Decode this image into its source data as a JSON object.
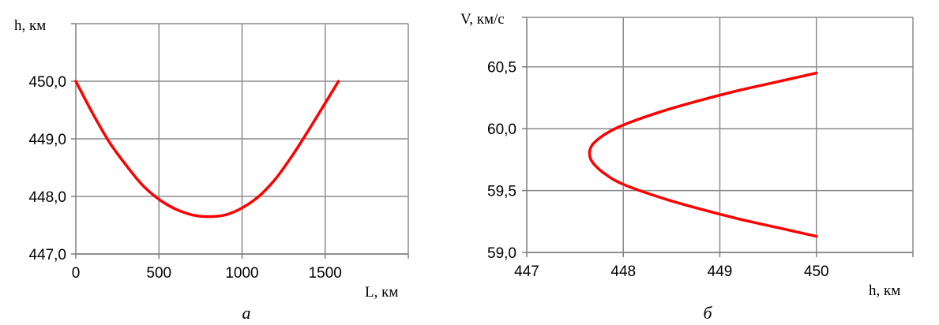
{
  "chart_data": [
    {
      "type": "line",
      "caption": "а",
      "xlabel": "L, км",
      "ylabel": "h, км",
      "xlim": [
        0,
        2000
      ],
      "ylim": [
        447.0,
        451.0
      ],
      "xticks": [
        "0",
        "500",
        "1000",
        "1500"
      ],
      "yticks": [
        "447,0",
        "448,0",
        "449,0",
        "450,0"
      ],
      "grid": true,
      "series": [
        {
          "color": "#ff0000",
          "points": [
            [
              0,
              450.0
            ],
            [
              100,
              449.45
            ],
            [
              200,
              448.95
            ],
            [
              300,
              448.55
            ],
            [
              400,
              448.2
            ],
            [
              500,
              447.95
            ],
            [
              600,
              447.78
            ],
            [
              700,
              447.68
            ],
            [
              790,
              447.65
            ],
            [
              900,
              447.68
            ],
            [
              1000,
              447.8
            ],
            [
              1100,
              448.0
            ],
            [
              1200,
              448.3
            ],
            [
              1300,
              448.7
            ],
            [
              1400,
              449.15
            ],
            [
              1500,
              449.62
            ],
            [
              1580,
              450.0
            ]
          ]
        }
      ]
    },
    {
      "type": "line",
      "caption": "б",
      "xlabel": "h, км",
      "ylabel": "V, км/с",
      "xlim": [
        447,
        451
      ],
      "ylim": [
        59.0,
        60.9
      ],
      "xticks": [
        "447",
        "448",
        "449",
        "450"
      ],
      "yticks": [
        "59,0",
        "59,5",
        "60,0",
        "60,5"
      ],
      "grid": true,
      "series": [
        {
          "color": "#ff0000",
          "points": [
            [
              450.0,
              60.45
            ],
            [
              449.6,
              60.38
            ],
            [
              449.2,
              60.31
            ],
            [
              448.8,
              60.23
            ],
            [
              448.4,
              60.14
            ],
            [
              448.0,
              60.03
            ],
            [
              447.8,
              59.95
            ],
            [
              447.68,
              59.87
            ],
            [
              447.65,
              59.8
            ],
            [
              447.68,
              59.73
            ],
            [
              447.8,
              59.64
            ],
            [
              448.0,
              59.55
            ],
            [
              448.4,
              59.44
            ],
            [
              448.8,
              59.35
            ],
            [
              449.2,
              59.27
            ],
            [
              449.6,
              59.2
            ],
            [
              450.0,
              59.13
            ]
          ]
        }
      ]
    }
  ]
}
